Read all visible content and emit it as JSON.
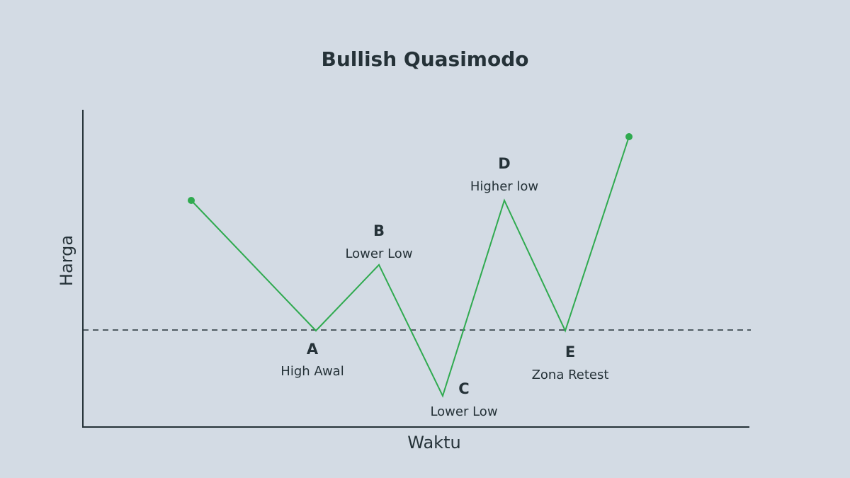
{
  "title": "Bullish Quasimodo",
  "y_axis_label": "Harga",
  "x_axis_label": "Waktu",
  "points": [
    {
      "letter": "A",
      "label": "High Awal"
    },
    {
      "letter": "B",
      "label": "Lower Low"
    },
    {
      "letter": "C",
      "label": "Lower Low"
    },
    {
      "letter": "D",
      "label": "Higher low"
    },
    {
      "letter": "E",
      "label": "Zona Retest"
    }
  ]
}
